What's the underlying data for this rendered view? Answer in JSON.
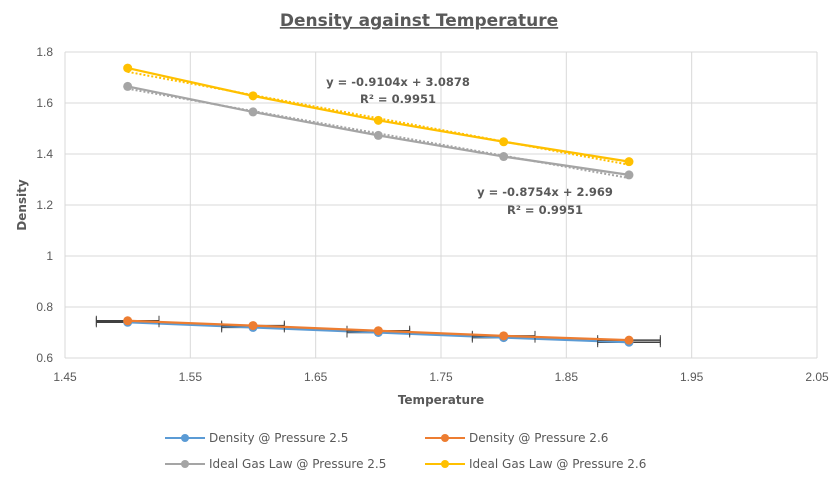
{
  "chart_data": {
    "type": "scatter",
    "title": "Density against Temperature",
    "xlabel": "Temperature",
    "ylabel": "Density",
    "xlim": [
      1.45,
      2.05
    ],
    "ylim": [
      0.6,
      1.8
    ],
    "xticks": [
      "1.45",
      "1.55",
      "1.65",
      "1.75",
      "1.85",
      "1.95",
      "2.05"
    ],
    "yticks": [
      "0.6",
      "0.8",
      "1",
      "1.2",
      "1.4",
      "1.6",
      "1.8"
    ],
    "grid": true,
    "legend_position": "bottom",
    "x": [
      1.5,
      1.6,
      1.7,
      1.8,
      1.9
    ],
    "series": [
      {
        "name": "Density @ Pressure 2.5",
        "color": "#5B9BD5",
        "values": [
          0.74,
          0.72,
          0.7,
          0.68,
          0.662
        ],
        "error_bars": "horizontal"
      },
      {
        "name": "Density @ Pressure 2.6",
        "color": "#ED7D31",
        "values": [
          0.746,
          0.727,
          0.707,
          0.687,
          0.67
        ],
        "error_bars": "horizontal"
      },
      {
        "name": "Ideal Gas Law @ Pressure 2.5",
        "color": "#A5A5A5",
        "values": [
          1.665,
          1.565,
          1.473,
          1.39,
          1.318
        ],
        "trendline": {
          "slope": -0.8754,
          "intercept": 2.969,
          "r2": 0.9951
        }
      },
      {
        "name": "Ideal Gas Law @ Pressure 2.6",
        "color": "#FFC000",
        "values": [
          1.737,
          1.628,
          1.532,
          1.448,
          1.37
        ],
        "trendline": {
          "slope": -0.9104,
          "intercept": 3.0878,
          "r2": 0.9951
        }
      }
    ],
    "annotations": [
      {
        "line1": "y = -0.9104x + 3.0878",
        "line2": "R² = 0.9951",
        "series": "Ideal Gas Law @ Pressure 2.6"
      },
      {
        "line1": "y = -0.8754x + 2.969",
        "line2": "R² = 0.9951",
        "series": "Ideal Gas Law @ Pressure 2.5"
      }
    ]
  }
}
